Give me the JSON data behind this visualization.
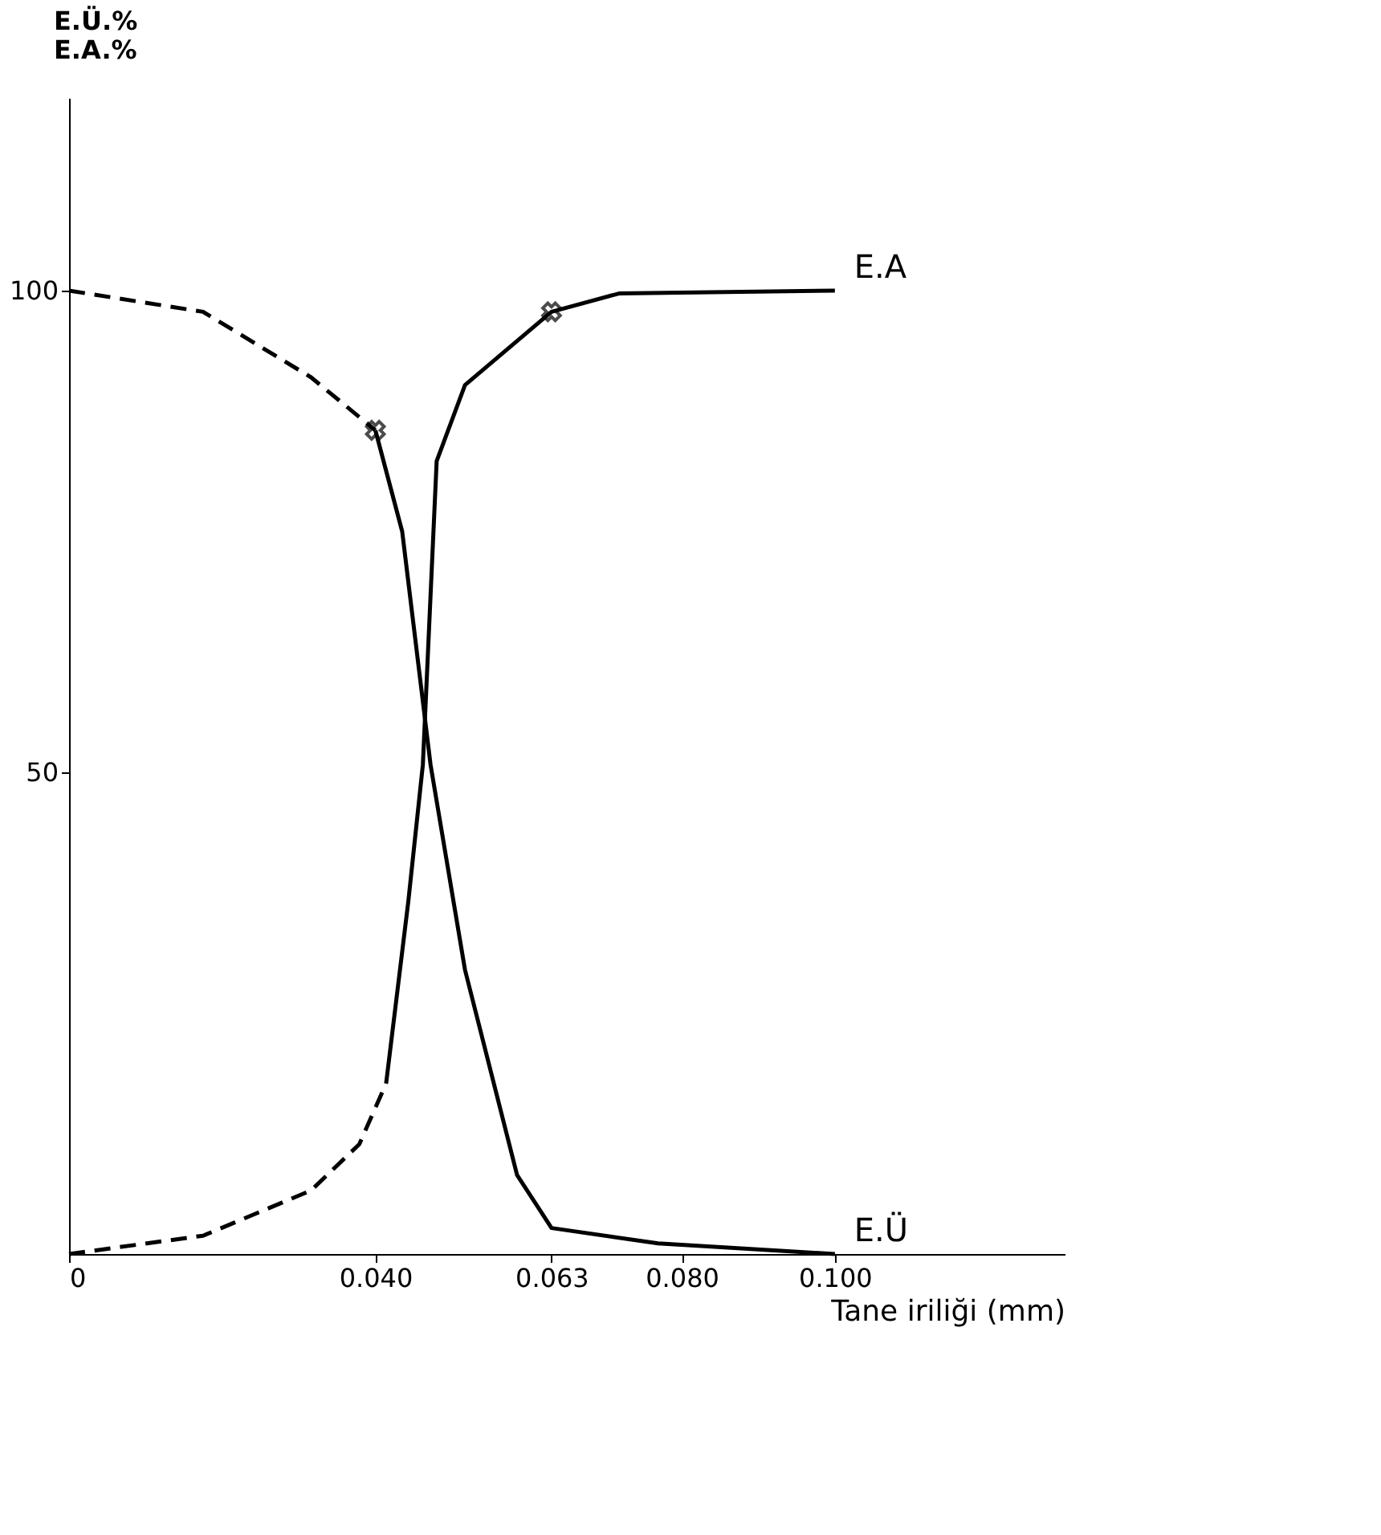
{
  "chart_data": {
    "type": "line",
    "xlabel": "Tane iriliği (mm)",
    "ylabel": "E.Ü.%\nE.A.%",
    "xlim": [
      0,
      0.13
    ],
    "ylim": [
      0,
      120
    ],
    "xticks": [
      0,
      {
        "value": 0.04,
        "label": "0.040"
      },
      {
        "value": 0.063,
        "label": "0.063"
      },
      {
        "value": 0.08,
        "label": "0.080"
      },
      {
        "value": 0.1,
        "label": "0.100"
      }
    ],
    "yticks": [
      50,
      100
    ],
    "grid": false,
    "series": [
      {
        "color": "#000000",
        "line_style": "dashed",
        "x": [
          0,
          0.0175,
          0.0316,
          0.04
        ],
        "values": [
          100,
          97.8,
          91,
          85.5
        ]
      },
      {
        "name": "E.Ü",
        "color": "#000000",
        "line_style": "solid",
        "x": [
          0.04,
          0.0435,
          0.0472,
          0.0517,
          0.0585,
          0.063,
          0.0769,
          0.1
        ],
        "values": [
          85.5,
          75,
          50.8,
          29.5,
          8.2,
          2.7,
          1.1,
          0
        ]
      },
      {
        "color": "#000000",
        "line_style": "dashed",
        "x": [
          0,
          0.0175,
          0.0316,
          0.0379,
          0.0414
        ],
        "values": [
          0,
          1.9,
          6.6,
          11.4,
          17.7
        ]
      },
      {
        "name": "E.A",
        "color": "#000000",
        "line_style": "solid",
        "x": [
          0.0414,
          0.0443,
          0.0462,
          0.048,
          0.0517,
          0.063,
          0.0718,
          0.1
        ],
        "values": [
          17.7,
          36.6,
          50.8,
          82.3,
          90.2,
          97.8,
          99.7,
          100
        ]
      },
      {
        "type": "scatter",
        "marker": "cross",
        "color": "#000000",
        "x": [
          0.04,
          0.063
        ],
        "values": [
          85.5,
          97.8
        ]
      }
    ]
  }
}
